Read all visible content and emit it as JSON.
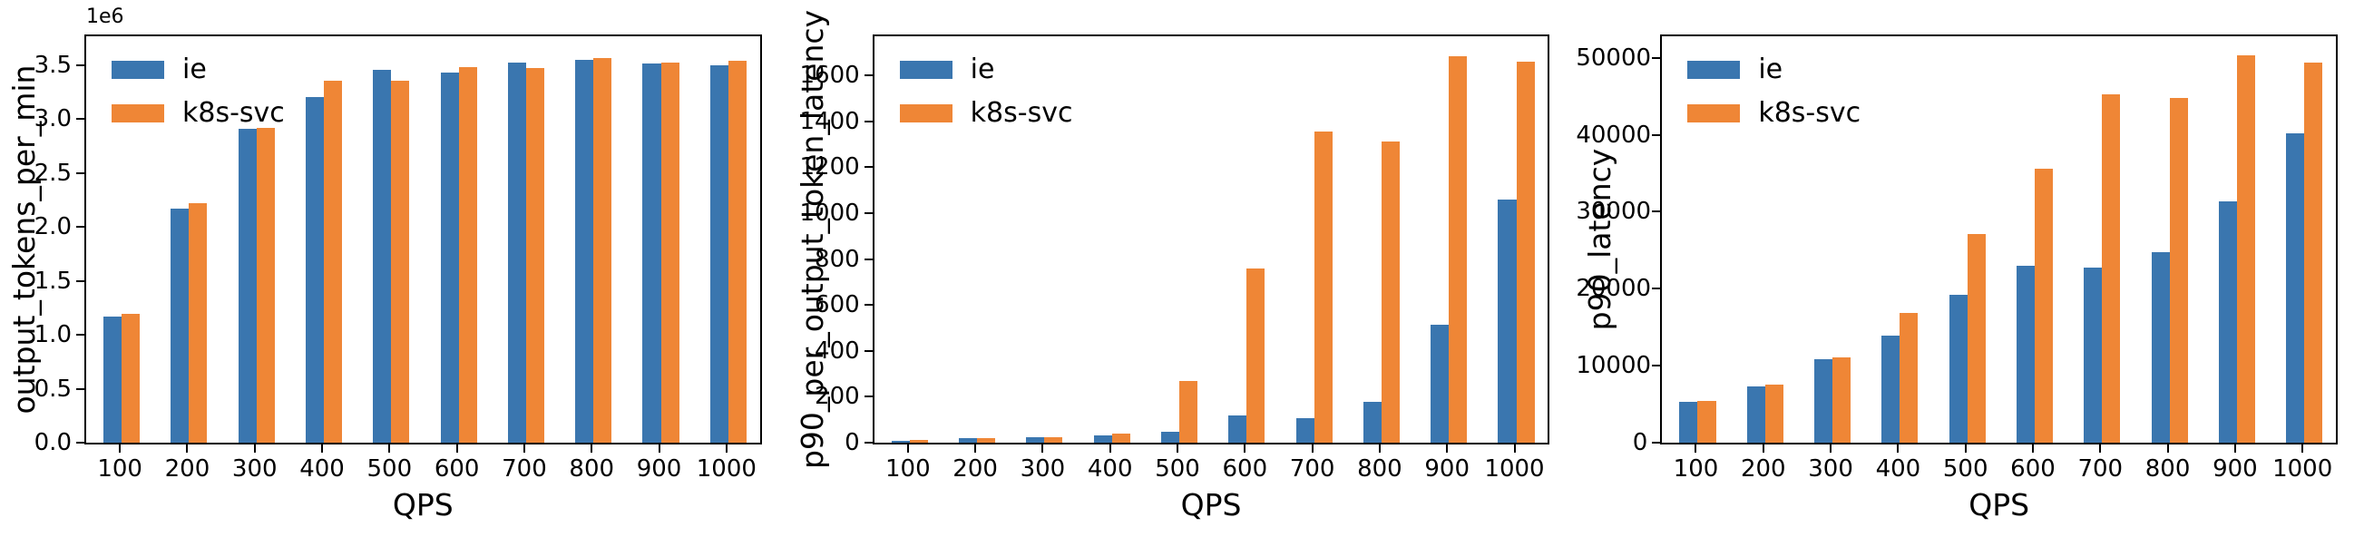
{
  "figure": {
    "background": "#ffffff",
    "spine_color": "#000000"
  },
  "legend": {
    "position": "upper-left",
    "items": [
      {
        "label": "ie",
        "color": "#3A76AF"
      },
      {
        "label": "k8s-svc",
        "color": "#EF8636"
      }
    ]
  },
  "chart_data": [
    {
      "type": "bar",
      "title": "",
      "xlabel": "QPS",
      "ylabel": "output_tokens_per_min",
      "y_offset_label": "1e6",
      "grid": false,
      "legend_position": "upper-left",
      "categories": [
        "100",
        "200",
        "300",
        "400",
        "500",
        "600",
        "700",
        "800",
        "900",
        "1000"
      ],
      "series": [
        {
          "name": "ie",
          "color": "#3A76AF",
          "values": [
            1170000,
            2170000,
            2910000,
            3200000,
            3450000,
            3430000,
            3520000,
            3550000,
            3510000,
            3500000
          ]
        },
        {
          "name": "k8s-svc",
          "color": "#EF8636",
          "values": [
            1190000,
            2220000,
            2920000,
            3350000,
            3350000,
            3480000,
            3470000,
            3560000,
            3520000,
            3540000
          ]
        }
      ],
      "ylim": [
        0,
        3765000
      ],
      "yticks": [
        0,
        500000,
        1000000,
        1500000,
        2000000,
        2500000,
        3000000,
        3500000
      ],
      "ytick_labels": [
        "0.0",
        "0.5",
        "1.0",
        "1.5",
        "2.0",
        "2.5",
        "3.0",
        "3.5"
      ]
    },
    {
      "type": "bar",
      "title": "",
      "xlabel": "QPS",
      "ylabel": "p90_per_output_token_latency",
      "y_offset_label": "",
      "grid": false,
      "legend_position": "upper-left",
      "categories": [
        "100",
        "200",
        "300",
        "400",
        "500",
        "600",
        "700",
        "800",
        "900",
        "1000"
      ],
      "series": [
        {
          "name": "ie",
          "color": "#3A76AF",
          "values": [
            8,
            18,
            25,
            33,
            48,
            118,
            107,
            178,
            515,
            1057
          ]
        },
        {
          "name": "k8s-svc",
          "color": "#EF8636",
          "values": [
            10,
            18,
            25,
            38,
            270,
            760,
            1355,
            1313,
            1685,
            1660
          ]
        }
      ],
      "ylim": [
        0,
        1770
      ],
      "yticks": [
        0,
        200,
        400,
        600,
        800,
        1000,
        1200,
        1400,
        1600
      ],
      "ytick_labels": [
        "0",
        "200",
        "400",
        "600",
        "800",
        "1000",
        "1200",
        "1400",
        "1600"
      ]
    },
    {
      "type": "bar",
      "title": "",
      "xlabel": "QPS",
      "ylabel": "p90_latency",
      "y_offset_label": "",
      "grid": false,
      "legend_position": "upper-left",
      "categories": [
        "100",
        "200",
        "300",
        "400",
        "500",
        "600",
        "700",
        "800",
        "900",
        "1000"
      ],
      "series": [
        {
          "name": "ie",
          "color": "#3A76AF",
          "values": [
            5300,
            7300,
            10900,
            13900,
            19200,
            23000,
            22800,
            24700,
            31300,
            40200
          ]
        },
        {
          "name": "k8s-svc",
          "color": "#EF8636",
          "values": [
            5400,
            7600,
            11100,
            16800,
            27100,
            35600,
            45300,
            44800,
            50300,
            49400
          ]
        }
      ],
      "ylim": [
        0,
        52800
      ],
      "yticks": [
        0,
        10000,
        20000,
        30000,
        40000,
        50000
      ],
      "ytick_labels": [
        "0",
        "10000",
        "20000",
        "30000",
        "40000",
        "50000"
      ]
    }
  ]
}
